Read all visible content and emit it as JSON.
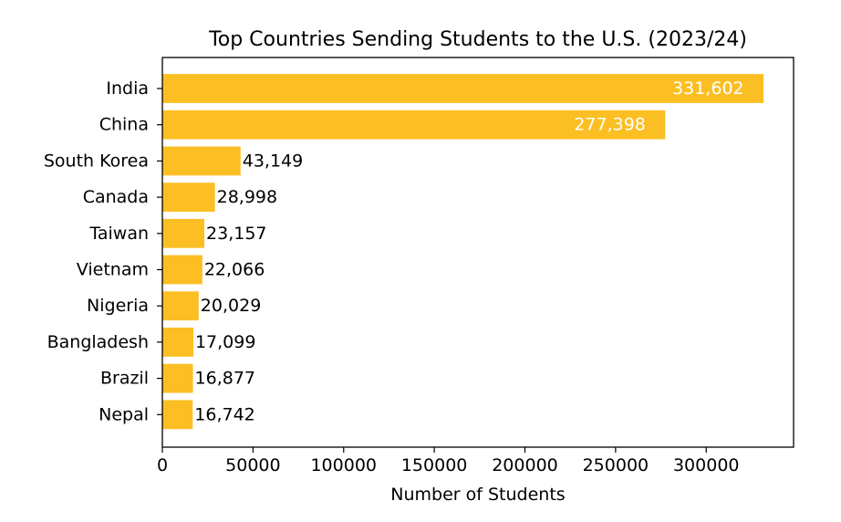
{
  "chart_data": {
    "type": "bar",
    "orientation": "horizontal",
    "title": "Top Countries Sending Students to the U.S. (2023/24)",
    "xlabel": "Number of Students",
    "ylabel": "",
    "categories": [
      "India",
      "China",
      "South Korea",
      "Canada",
      "Taiwan",
      "Vietnam",
      "Nigeria",
      "Bangladesh",
      "Brazil",
      "Nepal"
    ],
    "values": [
      331602,
      277398,
      43149,
      28998,
      23157,
      22066,
      20029,
      17099,
      16877,
      16742
    ],
    "value_labels": [
      "331,602",
      "277,398",
      "43,149",
      "28,998",
      "23,157",
      "22,066",
      "20,029",
      "17,099",
      "16,877",
      "16,742"
    ],
    "xlim": [
      0,
      348182
    ],
    "xticks": [
      0,
      50000,
      100000,
      150000,
      200000,
      250000,
      300000
    ],
    "xtick_labels": [
      "0",
      "50000",
      "100000",
      "150000",
      "200000",
      "250000",
      "300000"
    ],
    "grid": false,
    "legend": "none",
    "bar_color": "#fbbf24",
    "inside_label_color": "#ffffff",
    "outside_label_color": "#000000"
  }
}
